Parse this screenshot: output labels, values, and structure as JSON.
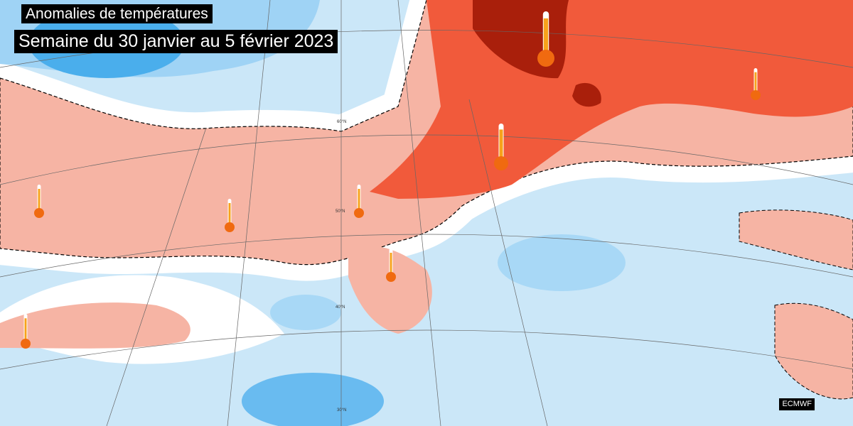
{
  "header": {
    "title": "Anomalies de températures",
    "subtitle": "Semaine du 30 janvier au 5 février 2023"
  },
  "credit": "ECMWF",
  "latitude_labels": [
    "60°N",
    "50°N",
    "40°N",
    "30°N"
  ]
}
